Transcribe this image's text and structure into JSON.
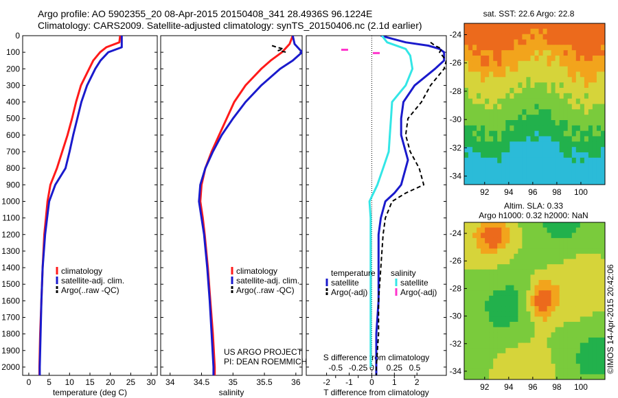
{
  "header": {
    "line1": "Argo profile: AO 5902355_20 08-Apr-2015 20150408_341 28.4936S 96.1224E",
    "line2": "Climatology: CARS2009. Satellite-adjusted climatology: synTS_20150406.nc (2.1d earlier)"
  },
  "colors": {
    "climatology": "#ff1a1a",
    "satellite": "#1a1acc",
    "argo": "#000000",
    "salinity_sat": "#33e6e6",
    "salinity_argo": "#ff33cc"
  },
  "chart_data": [
    {
      "type": "line",
      "xlabel": "temperature (deg C)",
      "ylim": [
        2050,
        0
      ],
      "xlim": [
        -1.5,
        31.5
      ],
      "xticks": [
        "0",
        "5",
        "10",
        "15",
        "20",
        "25",
        "30"
      ],
      "yticks": [
        "0",
        "100",
        "200",
        "300",
        "400",
        "500",
        "600",
        "700",
        "800",
        "900",
        "1000",
        "1100",
        "1200",
        "1300",
        "1400",
        "1500",
        "1600",
        "1700",
        "1800",
        "1900",
        "2000"
      ],
      "legend": [
        "climatology",
        "satellite-adj. clim.",
        "Argo(..raw -QC)"
      ],
      "series": [
        {
          "name": "climatology",
          "color": "#ff1a1a",
          "depth": [
            0,
            40,
            70,
            100,
            150,
            200,
            300,
            400,
            500,
            600,
            700,
            800,
            900,
            1000,
            1100,
            1200,
            1400,
            1600,
            1800,
            2000,
            2050
          ],
          "values": [
            22.4,
            22.2,
            19,
            17.5,
            15.8,
            14.8,
            12.8,
            11.6,
            10.6,
            9.5,
            8.2,
            6.9,
            5.3,
            4.6,
            4.2,
            3.8,
            3.4,
            3.1,
            2.8,
            2.6,
            2.6
          ]
        },
        {
          "name": "satellite-adj. clim.",
          "color": "#1a1acc",
          "depth": [
            0,
            40,
            70,
            100,
            150,
            200,
            300,
            400,
            500,
            600,
            700,
            800,
            900,
            1000,
            1100,
            1200,
            1400,
            1600,
            1800,
            2000,
            2050
          ],
          "values": [
            22.8,
            22.8,
            22.8,
            19.5,
            17.6,
            16.3,
            14.3,
            12.9,
            11.9,
            10.9,
            10.0,
            9.0,
            6.5,
            5.0,
            4.5,
            4.0,
            3.4,
            3.1,
            2.9,
            2.7,
            2.7
          ]
        }
      ]
    },
    {
      "type": "line",
      "xlabel": "salinity",
      "ylim": [
        2050,
        0
      ],
      "xlim": [
        33.85,
        36.1
      ],
      "xticks": [
        "34",
        "34.5",
        "35",
        "35.5",
        "36"
      ],
      "legend": [
        "climatology",
        "satellite-adj. clim.",
        "Argo(..raw -QC)"
      ],
      "annotation": [
        "US ARGO PROJECT",
        "PI: DEAN ROEMMICH"
      ],
      "series": [
        {
          "name": "climatology",
          "color": "#ff1a1a",
          "depth": [
            0,
            50,
            100,
            150,
            200,
            300,
            400,
            500,
            600,
            700,
            800,
            900,
            1000,
            1100,
            1200,
            1400,
            1600,
            1800,
            2000,
            2050
          ],
          "values": [
            35.95,
            35.9,
            35.78,
            35.6,
            35.45,
            35.2,
            35.02,
            34.9,
            34.78,
            34.66,
            34.56,
            34.5,
            34.48,
            34.52,
            34.55,
            34.6,
            34.64,
            34.68,
            34.71,
            34.71
          ]
        },
        {
          "name": "satellite-adj. clim.",
          "color": "#1a1acc",
          "depth": [
            0,
            50,
            100,
            150,
            200,
            300,
            400,
            500,
            600,
            700,
            800,
            900,
            1000,
            1100,
            1200,
            1400,
            1600,
            1800,
            2000,
            2050
          ],
          "values": [
            35.95,
            35.98,
            36.1,
            35.95,
            35.75,
            35.45,
            35.2,
            35.0,
            34.82,
            34.68,
            34.56,
            34.48,
            34.46,
            34.5,
            34.54,
            34.59,
            34.63,
            34.66,
            34.69,
            34.69
          ]
        },
        {
          "name": "Argo(..raw -QC)",
          "color": "#000000",
          "dashed": true,
          "depth": [
            60,
            70,
            80,
            90,
            100
          ],
          "values": [
            35.62,
            35.7,
            35.8,
            35.72,
            35.85
          ]
        }
      ]
    },
    {
      "type": "line",
      "xlabel": "T difference from climatology",
      "title": "S difference from climatology",
      "ylim": [
        2050,
        0
      ],
      "xlim": [
        -2.9,
        3.3
      ],
      "xticks": [
        "-2",
        "-1",
        "0",
        "1",
        "2"
      ],
      "sticks": [
        "-0.5",
        "-0.25",
        "0",
        "0.25",
        "0.5"
      ],
      "legend_titles": [
        "temperature",
        "salinity"
      ],
      "legend": [
        "satellite",
        "Argo(-adj)",
        "satellite",
        "Argo(-adj)"
      ],
      "series": [
        {
          "name": "satellite",
          "color": "#1a1acc",
          "depth": [
            0,
            40,
            60,
            80,
            100,
            150,
            200,
            300,
            400,
            500,
            600,
            700,
            750,
            800,
            850,
            900,
            950,
            1000,
            1100,
            1200,
            1400,
            1600,
            1800,
            2000,
            2050
          ],
          "values": [
            0.4,
            1.5,
            2.5,
            3.0,
            3.2,
            3.2,
            2.8,
            1.9,
            1.4,
            1.3,
            1.3,
            1.5,
            1.6,
            1.5,
            1.4,
            1.3,
            1.0,
            0.6,
            0.4,
            0.3,
            0.3,
            0.3,
            0.2,
            0.2,
            0.2
          ]
        },
        {
          "name": "Argo(-adj)",
          "color": "#000000",
          "dashed": true,
          "depth": [
            40,
            60,
            80,
            100,
            150,
            200,
            300,
            400,
            500,
            600,
            700,
            800,
            850,
            900,
            950,
            1000,
            1100,
            1200,
            1400,
            1600,
            1800,
            2000,
            2050
          ],
          "values": [
            2.6,
            2.8,
            3.1,
            3.0,
            3.3,
            3.2,
            2.6,
            2.2,
            1.6,
            1.5,
            1.7,
            2.1,
            2.2,
            2.3,
            1.5,
            0.9,
            0.6,
            0.5,
            0.4,
            0.3,
            0.3,
            0.2,
            0.2
          ]
        },
        {
          "name": "S satellite",
          "color": "#33e6e6",
          "depth": [
            0,
            40,
            80,
            120,
            200,
            300,
            400,
            500,
            600,
            700,
            800,
            900,
            1000,
            1100,
            1200,
            1400,
            1600,
            1800,
            2000
          ],
          "values": [
            0.45,
            0.68,
            1.5,
            1.7,
            1.8,
            1.5,
            0.9,
            0.85,
            0.8,
            0.75,
            0.5,
            0.25,
            -0.1,
            -0.05,
            -0.05,
            -0.05,
            -0.05,
            -0.05,
            -0.05
          ]
        }
      ],
      "argo_s_points": [
        {
          "depth": 85,
          "value": -0.3
        },
        {
          "depth": 105,
          "value": 0.05
        }
      ]
    }
  ],
  "map_sst": {
    "title": "sat. SST: 22.6 Argo: 22.8",
    "xticks": [
      "92",
      "94",
      "96",
      "98",
      "100"
    ],
    "yticks": [
      "-24",
      "-26",
      "-28",
      "-30",
      "-32",
      "-34"
    ]
  },
  "map_sla": {
    "title1": "Altim. SLA: 0.33",
    "title2": "Argo h1000: 0.32 h2000: NaN",
    "xticks": [
      "92",
      "94",
      "96",
      "98",
      "100"
    ],
    "yticks": [
      "-24",
      "-26",
      "-28",
      "-30",
      "-32",
      "-34"
    ]
  },
  "credit": "©IMOS 14-Apr-2015 20:42:06"
}
